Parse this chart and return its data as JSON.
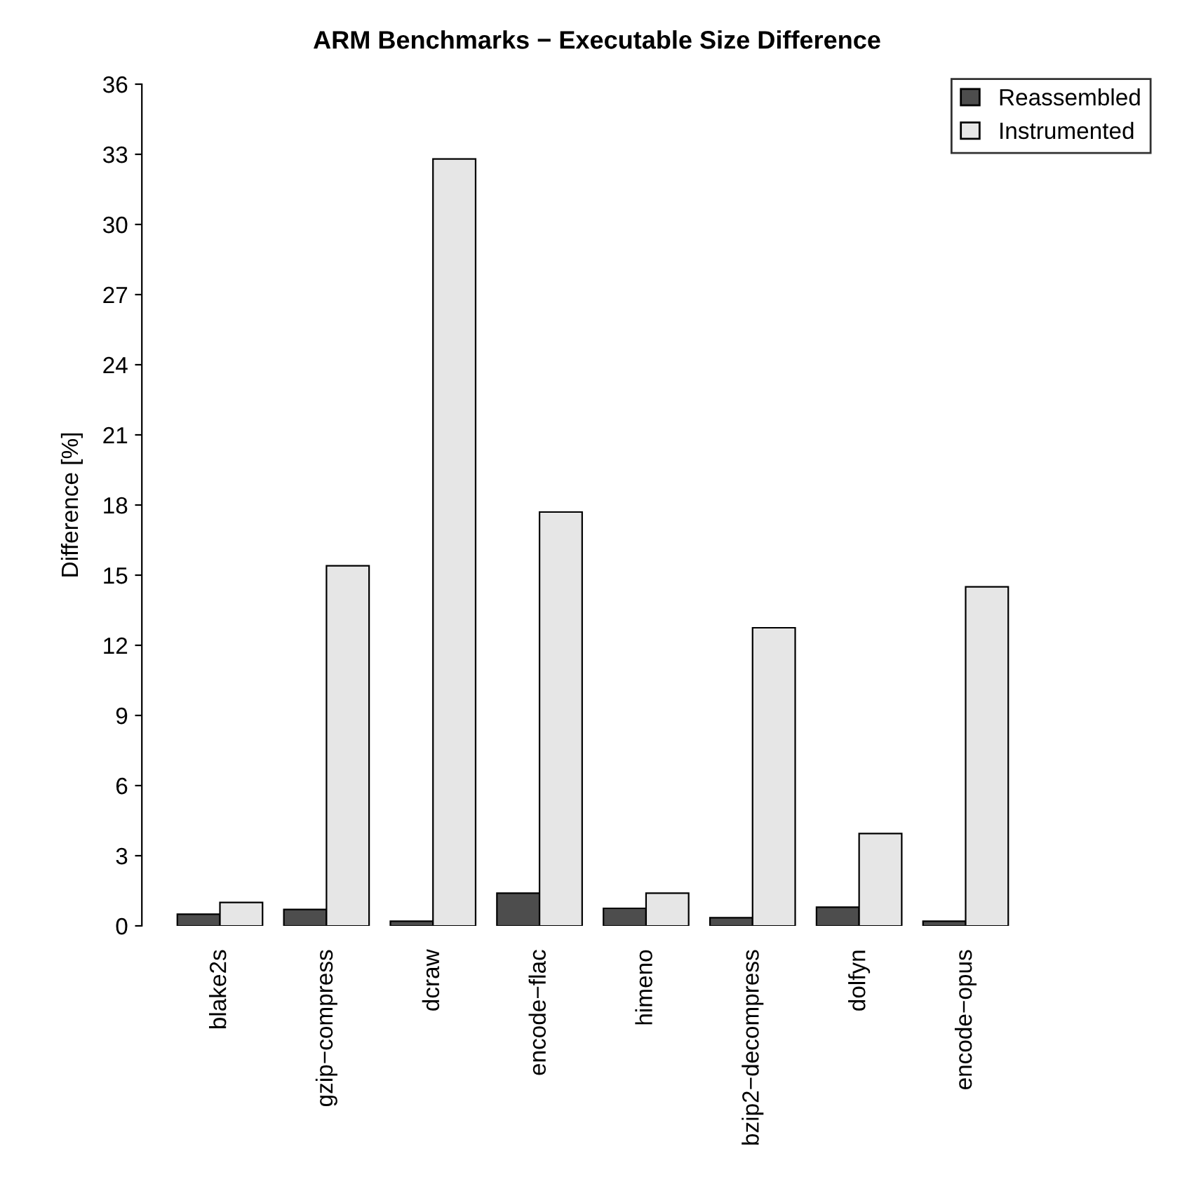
{
  "chart_data": {
    "type": "bar",
    "title": "ARM Benchmarks − Executable Size Difference",
    "ylabel": "Difference [%]",
    "categories": [
      "blake2s",
      "gzip−compress",
      "dcraw",
      "encode−flac",
      "himeno",
      "bzip2−decompress",
      "dolfyn",
      "encode−opus"
    ],
    "series": [
      {
        "name": "Reassembled",
        "color": "#4d4d4d",
        "values": [
          0.5,
          0.7,
          0.2,
          1.4,
          0.75,
          0.35,
          0.8,
          0.2
        ]
      },
      {
        "name": "Instrumented",
        "color": "#e6e6e6",
        "values": [
          1.0,
          15.4,
          32.8,
          17.7,
          1.4,
          12.75,
          3.95,
          14.5
        ]
      }
    ],
    "ylim": [
      0,
      36
    ],
    "yticks": [
      0,
      3,
      6,
      9,
      12,
      15,
      18,
      21,
      24,
      27,
      30,
      33,
      36
    ],
    "legend": "top right",
    "grid": false
  }
}
